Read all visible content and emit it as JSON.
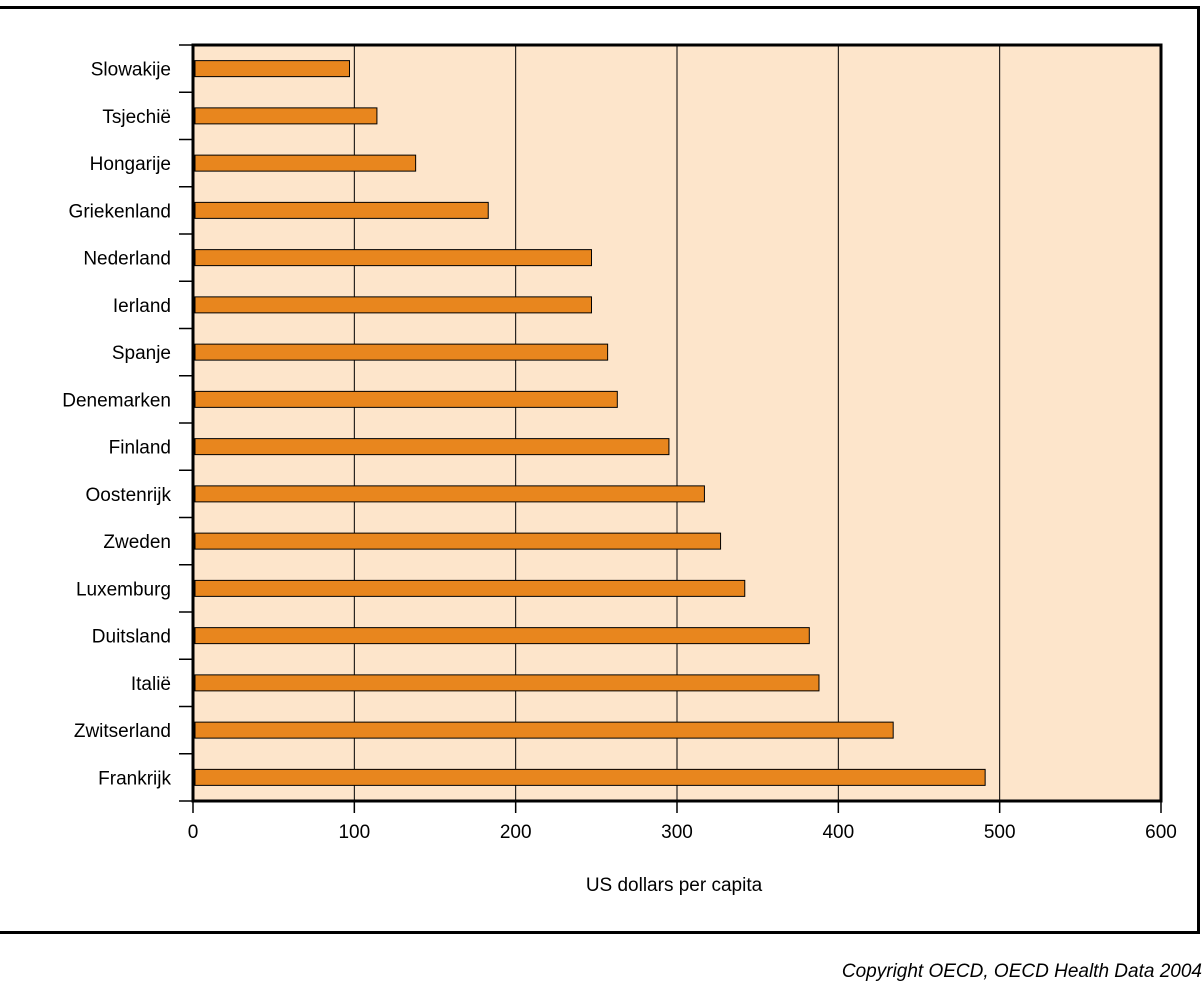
{
  "chart_data": {
    "type": "bar",
    "orientation": "horizontal",
    "categories": [
      "Slowakije",
      "Tsjechië",
      "Hongarije",
      "Griekenland",
      "Nederland",
      "Ierland",
      "Spanje",
      "Denemarken",
      "Finland",
      "Oostenrijk",
      "Zweden",
      "Luxemburg",
      "Duitsland",
      "Italië",
      "Zwitserland",
      "Frankrijk"
    ],
    "values": [
      97,
      114,
      138,
      183,
      247,
      247,
      257,
      263,
      295,
      317,
      327,
      342,
      382,
      388,
      434,
      491
    ],
    "xlabel": "US dollars per capita",
    "xlim": [
      0,
      600
    ],
    "xticks": [
      "0",
      "100",
      "200",
      "300",
      "400",
      "500",
      "600"
    ],
    "grid": true,
    "colors": {
      "bar": "#e8861e",
      "plot_background": "#fde5cb",
      "grid": "#000000"
    }
  },
  "footer": {
    "copyright": "Copyright OECD, OECD Health Data 2004"
  }
}
